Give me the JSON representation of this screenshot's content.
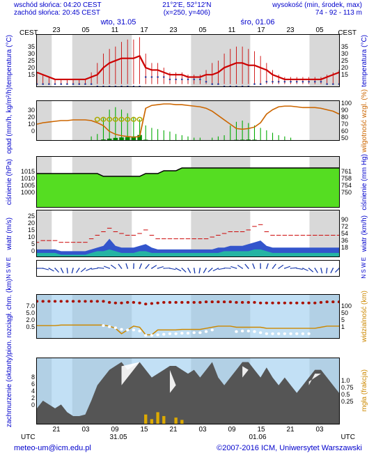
{
  "header": {
    "sunrise_label": "wschód słońca:",
    "sunrise": "04:20 CEST",
    "sunset_label": "zachód słońca:",
    "sunset": "20:45 CEST",
    "coords": "21°2'E, 52°12'N",
    "xy": "(x=250, y=406)",
    "alt_label": "wysokość (min, środek, max)",
    "alt": "74 - 92 - 113 m"
  },
  "dates": {
    "d1": "wto, 31.05",
    "d2": "śro, 01.06"
  },
  "top_ticks": [
    "23",
    "05",
    "11",
    "17",
    "23",
    "05",
    "11",
    "17",
    "23",
    "05"
  ],
  "cest": "CEST",
  "bottom_ticks": [
    "21",
    "03",
    "09",
    "15",
    "21",
    "03",
    "09",
    "15",
    "21",
    "03"
  ],
  "bottom_dates": [
    "31.05",
    "01.06"
  ],
  "utc": "UTC",
  "footer": {
    "email": "meteo-um@icm.edu.pl",
    "copyright": "©2007-2016 ICM, Uniwersytet Warszawski"
  },
  "panels": {
    "shade_pct": [
      [
        0,
        4.9
      ],
      [
        11.7,
        31.4
      ],
      [
        51.0,
        70.6
      ],
      [
        90.2,
        100
      ]
    ],
    "temp": {
      "label_l": "temperatura (°C)",
      "label_r": "temperatura (°C)",
      "yticks_l": [
        "35",
        "30",
        "25",
        "20",
        "15"
      ],
      "yticks_r": [
        "35",
        "30",
        "25",
        "20",
        "15"
      ],
      "ylim": [
        14,
        36
      ],
      "height": 76,
      "series_red": {
        "color": "#cc0000",
        "width": 2.2,
        "y": [
          20,
          19,
          18,
          17,
          17,
          17,
          17,
          17,
          17,
          18,
          19,
          22,
          24,
          25,
          26,
          26,
          26,
          27,
          22,
          21,
          21,
          20,
          19,
          19,
          19,
          18,
          18,
          18,
          19,
          19,
          20,
          22,
          23,
          24,
          24,
          23,
          23,
          22,
          21,
          19,
          18,
          17,
          17,
          17,
          17,
          17,
          17,
          17,
          18,
          19,
          20
        ]
      },
      "spikes": {
        "color": "#cc0000",
        "width": 0.8,
        "base": 15,
        "y": [
          20,
          19,
          18,
          17,
          17,
          17,
          17,
          17,
          17,
          20,
          24,
          28,
          30,
          31,
          33,
          34,
          34,
          35,
          28,
          24,
          24,
          22,
          20,
          20,
          20,
          19,
          19,
          19,
          21,
          24,
          25,
          28,
          30,
          31,
          31,
          30,
          29,
          27,
          24,
          21,
          19,
          18,
          18,
          18,
          18,
          18,
          18,
          18,
          19,
          20,
          21
        ]
      },
      "dots": {
        "color": "#223399",
        "r": 1.2,
        "y": [
          15,
          15,
          15,
          15,
          15,
          15,
          15,
          15,
          15,
          15,
          14,
          14,
          14,
          14,
          14,
          14,
          14,
          14,
          18,
          18,
          18,
          18,
          17,
          17,
          17,
          17,
          17,
          17,
          16,
          15,
          15,
          14,
          14,
          14,
          14,
          14,
          15,
          15,
          16,
          16,
          16,
          16,
          16,
          16,
          16,
          16,
          16,
          16,
          15,
          15,
          15
        ]
      }
    },
    "precip": {
      "label_l": "opad (mm/h, kg/m²/h)",
      "label_r": "wilgotność wzgl. (%)",
      "yticks_l": [
        "30",
        "20",
        "10",
        "0"
      ],
      "yticks_r": [
        "100",
        "90",
        "80",
        "70",
        "60",
        "50"
      ],
      "ylim_l": [
        0,
        32
      ],
      "ylim_r": [
        48,
        102
      ],
      "height": 58,
      "hum": {
        "color": "#cc6600",
        "width": 1.6,
        "y": [
          70,
          72,
          73,
          74,
          75,
          75,
          76,
          76,
          76,
          75,
          72,
          68,
          60,
          56,
          54,
          53,
          52,
          53,
          92,
          96,
          97,
          98,
          98,
          97,
          97,
          96,
          95,
          94,
          92,
          88,
          82,
          76,
          70,
          64,
          63,
          64,
          66,
          72,
          84,
          90,
          94,
          95,
          95,
          94,
          93,
          93,
          93,
          92,
          90,
          88,
          84
        ]
      },
      "bars_green": {
        "color": "#008800",
        "y": [
          0,
          0,
          0,
          0,
          0,
          0,
          0,
          0,
          0,
          0,
          0,
          0.5,
          1.2,
          1.8,
          2.2,
          2.4,
          3.0,
          4.2,
          0.3,
          0,
          0,
          0,
          0,
          0,
          0,
          0,
          0,
          0,
          0,
          0,
          0,
          0,
          0,
          0.2,
          0.3,
          0.4,
          0.3,
          0,
          0,
          0,
          0,
          0,
          0,
          0,
          0,
          0,
          0,
          0,
          0,
          0,
          0
        ]
      },
      "spikes_green": {
        "color": "#00aa00",
        "width": 1,
        "y": [
          0,
          0,
          0,
          0,
          0,
          0,
          0,
          0,
          0,
          3,
          5,
          18,
          25,
          27,
          25,
          22,
          19,
          17,
          12,
          10,
          9,
          8,
          7,
          5,
          4,
          3,
          2,
          2,
          0,
          2,
          3,
          4,
          12,
          15,
          16,
          14,
          12,
          10,
          8,
          6,
          4,
          3,
          2,
          0,
          0,
          0,
          0,
          0,
          0,
          0,
          0
        ]
      },
      "circles": {
        "color": "#aaaa00",
        "y_idx": [
          10,
          11,
          12,
          13,
          14,
          15,
          16,
          17
        ],
        "yval": 17
      }
    },
    "press": {
      "label_l": "ciśnienie (hPa)",
      "label_r": "ciśnienie (mm Hg)",
      "yticks_l": [
        "1015",
        "1010",
        "1005",
        "1000"
      ],
      "yticks_r": [
        "761",
        "758",
        "754",
        "750"
      ],
      "ylim": [
        998,
        1016
      ],
      "height": 74,
      "fill": "#55dd22",
      "line": {
        "color": "#000",
        "width": 1.5,
        "y": [
          1010,
          1010,
          1010,
          1010,
          1010,
          1010,
          1010,
          1010,
          1010,
          1010,
          1010,
          1009,
          1009,
          1009,
          1009,
          1009,
          1009,
          1009,
          1010,
          1010,
          1010,
          1011,
          1011,
          1011,
          1012,
          1012,
          1012,
          1012,
          1012,
          1012,
          1012,
          1012,
          1012,
          1012,
          1012,
          1012,
          1012,
          1012,
          1012,
          1012,
          1012,
          1012,
          1012,
          1012,
          1012,
          1012,
          1012,
          1012,
          1012,
          1012,
          1012
        ]
      }
    },
    "wind": {
      "label_l": "wiatr (m/s)",
      "label_r": "wiatr (km/h)",
      "yticks_l": [
        "25",
        "20",
        "15",
        "10",
        "5",
        "0"
      ],
      "yticks_r": [
        "90",
        "72",
        "54",
        "36",
        "18"
      ],
      "ylim": [
        0,
        26
      ],
      "height": 68,
      "area": {
        "color": "#3355cc",
        "y": [
          4,
          4,
          4,
          4,
          3,
          3,
          3,
          3,
          3,
          4,
          5,
          6,
          10,
          6,
          5,
          5,
          5,
          6,
          7,
          5,
          4,
          4,
          4,
          4,
          4,
          4,
          4,
          4,
          4,
          4,
          5,
          5,
          6,
          6,
          6,
          7,
          8,
          9,
          6,
          5,
          5,
          5,
          5,
          5,
          5,
          5,
          5,
          5,
          5,
          5,
          5
        ]
      },
      "area2": {
        "color": "#22cc99",
        "y": [
          2,
          2,
          2,
          2,
          1,
          1,
          1,
          1,
          1,
          2,
          3,
          3,
          4,
          3,
          2,
          2,
          2,
          3,
          3,
          2,
          2,
          2,
          2,
          2,
          2,
          2,
          2,
          2,
          2,
          2,
          2,
          3,
          3,
          3,
          3,
          3,
          4,
          4,
          3,
          2,
          2,
          2,
          2,
          2,
          2,
          2,
          2,
          2,
          2,
          2,
          2
        ]
      },
      "dashes": {
        "color": "#cc0000",
        "y": [
          8,
          9,
          9,
          9,
          8,
          8,
          8,
          8,
          8,
          10,
          12,
          14,
          16,
          14,
          13,
          12,
          12,
          13,
          15,
          12,
          10,
          10,
          10,
          10,
          10,
          10,
          10,
          10,
          10,
          11,
          12,
          13,
          14,
          14,
          14,
          15,
          17,
          18,
          14,
          12,
          12,
          12,
          12,
          12,
          12,
          12,
          12,
          12,
          12,
          12,
          12
        ]
      }
    },
    "dir": {
      "label_l": "N S W E",
      "label_r": "N S W E",
      "height": 24,
      "bg": "#fff",
      "arrow_color": "#1133aa"
    },
    "vis": {
      "label_l": "pion. rozciągł. chm. (km)",
      "label_r": "widzialność (km)",
      "yticks_l": [
        "7.0",
        "5.0",
        "2.0",
        "0.5"
      ],
      "yticks_r": [
        "100",
        "50",
        "5",
        "1"
      ],
      "ylim": [
        0,
        8
      ],
      "height": 64,
      "bg": "#99ccee",
      "line": {
        "color": "#cc8800",
        "width": 1.5,
        "y": [
          2.3,
          2.3,
          2.3,
          2.3,
          2.4,
          2.4,
          2.4,
          2.4,
          2.4,
          2.4,
          2.4,
          2.4,
          2.2,
          1.8,
          0.8,
          1.5,
          2.2,
          2.0,
          0.6,
          0.6,
          1.5,
          1.5,
          1.5,
          1.5,
          1.6,
          1.6,
          1.6,
          1.6,
          1.8,
          2.0,
          2.2,
          2.2,
          2.2,
          2.0,
          2.0,
          2.0,
          2.0,
          2.0,
          1.8,
          1.8,
          1.8,
          1.8,
          1.8,
          1.8,
          1.8,
          1.8,
          1.8,
          2.0,
          2.2,
          2.2,
          2.2
        ]
      },
      "dots_red": {
        "color": "#aa1100",
        "r": 2,
        "y": [
          6.8,
          6.8,
          6.8,
          6.8,
          6.8,
          6.8,
          6.8,
          6.8,
          6.8,
          6.8,
          6.8,
          6.8,
          6.6,
          6.5,
          6.5,
          6.6,
          6.6,
          6.5,
          6.3,
          6.4,
          6.5,
          6.6,
          6.6,
          6.6,
          6.6,
          6.6,
          6.6,
          6.6,
          6.7,
          6.7,
          6.7,
          6.7,
          6.7,
          6.6,
          6.6,
          6.6,
          6.6,
          6.5,
          6.5,
          6.5,
          6.5,
          6.5,
          6.5,
          6.5,
          6.5,
          6.5,
          6.5,
          6.6,
          6.7,
          6.7,
          6.7
        ]
      },
      "dots_white": {
        "color": "#fff",
        "r": 2,
        "y": [
          null,
          null,
          null,
          null,
          null,
          null,
          null,
          null,
          null,
          null,
          null,
          2.3,
          2.1,
          1.9,
          1.6,
          1.5,
          1.5,
          1.3,
          0.5,
          0.5,
          0.6,
          0.7,
          0.8,
          0.8,
          0.9,
          0.9,
          1.0,
          1.0,
          1.2,
          1.5,
          null,
          null,
          null,
          1.2,
          1.3,
          1.3,
          1.2,
          1.0,
          0.8,
          0.8,
          0.8,
          0.8,
          0.8,
          0.8,
          0.8,
          0.8,
          null,
          null,
          null,
          null,
          null
        ]
      }
    },
    "cloud": {
      "label_l": "zachmurzenie (oktanty)",
      "label_r": "mgła (frakcja)",
      "yticks_l": [
        "8",
        "6",
        "4",
        "2",
        "0"
      ],
      "yticks_r": [
        "1.0",
        "0.75",
        "0.5",
        "0.25"
      ],
      "ylim": [
        0,
        8.5
      ],
      "height": 96,
      "bg": "#99ccee",
      "mtn": {
        "color": "#555",
        "y": [
          2,
          3,
          2.5,
          2,
          2.5,
          1.5,
          1,
          1,
          1.2,
          3,
          5,
          6,
          7,
          7.5,
          8,
          7,
          7.5,
          8,
          7,
          6,
          6.5,
          7,
          7.5,
          7.5,
          7,
          6.5,
          7,
          6,
          7,
          8,
          6,
          5,
          6,
          7,
          8,
          8,
          7,
          6,
          7.3,
          6,
          5,
          6,
          5,
          4,
          5,
          6,
          7,
          7,
          6,
          5,
          4
        ]
      },
      "white": {
        "color": "#fff",
        "y": [
          null,
          null,
          null,
          null,
          null,
          null,
          null,
          null,
          null,
          null,
          null,
          null,
          null,
          null,
          5,
          6,
          7,
          8,
          null,
          null,
          null,
          null,
          4,
          5,
          null,
          null,
          null,
          null,
          null,
          7.5,
          null,
          null,
          null,
          null,
          6,
          7,
          null,
          null,
          7,
          null,
          null,
          null,
          null,
          null,
          null,
          5,
          6.5,
          6.5,
          null,
          null,
          null
        ]
      },
      "bars": {
        "color": "#ddaa00",
        "idx": [
          18,
          19,
          20,
          21,
          23,
          24
        ],
        "h": [
          1.2,
          0.6,
          1.5,
          1.0,
          0.8,
          0.5
        ]
      }
    }
  }
}
